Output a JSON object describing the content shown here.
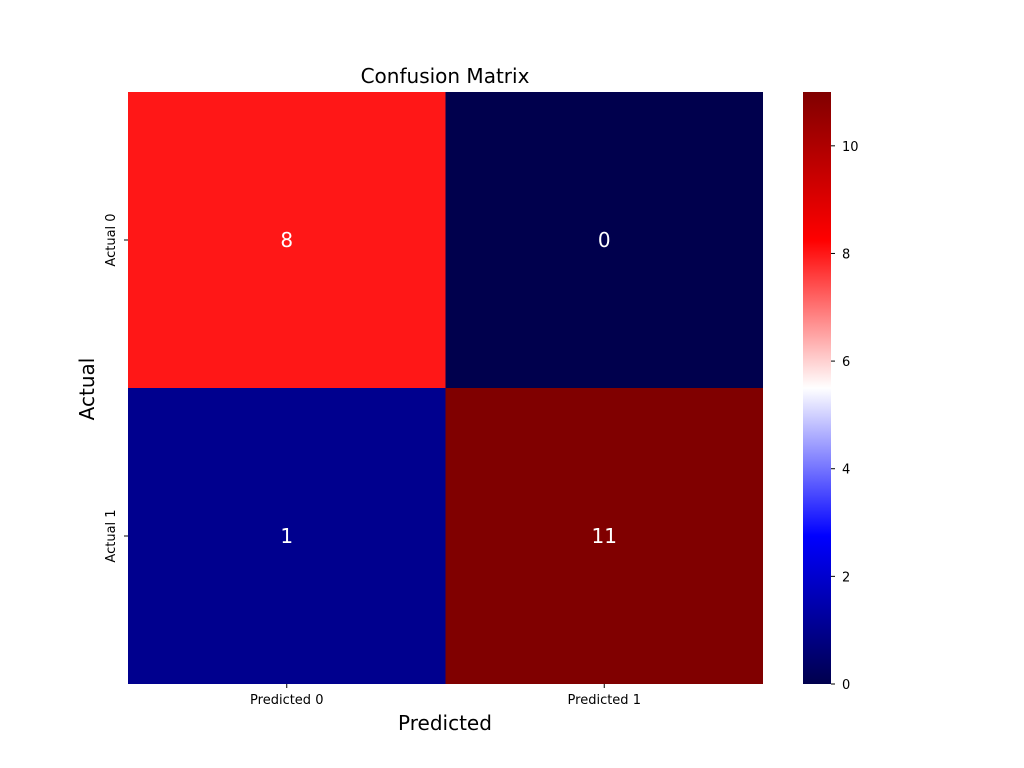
{
  "chart_data": {
    "type": "heatmap",
    "title": "Confusion Matrix",
    "xlabel": "Predicted",
    "ylabel": "Actual",
    "x_categories": [
      "Predicted 0",
      "Predicted 1"
    ],
    "y_categories": [
      "Actual 0",
      "Actual 1"
    ],
    "values": [
      [
        8,
        0
      ],
      [
        1,
        11
      ]
    ],
    "colorbar": {
      "range": [
        0,
        11
      ],
      "ticks": [
        0,
        2,
        4,
        6,
        8,
        10
      ],
      "colormap": "seismic"
    },
    "cell_text_color": "#ffffff"
  }
}
